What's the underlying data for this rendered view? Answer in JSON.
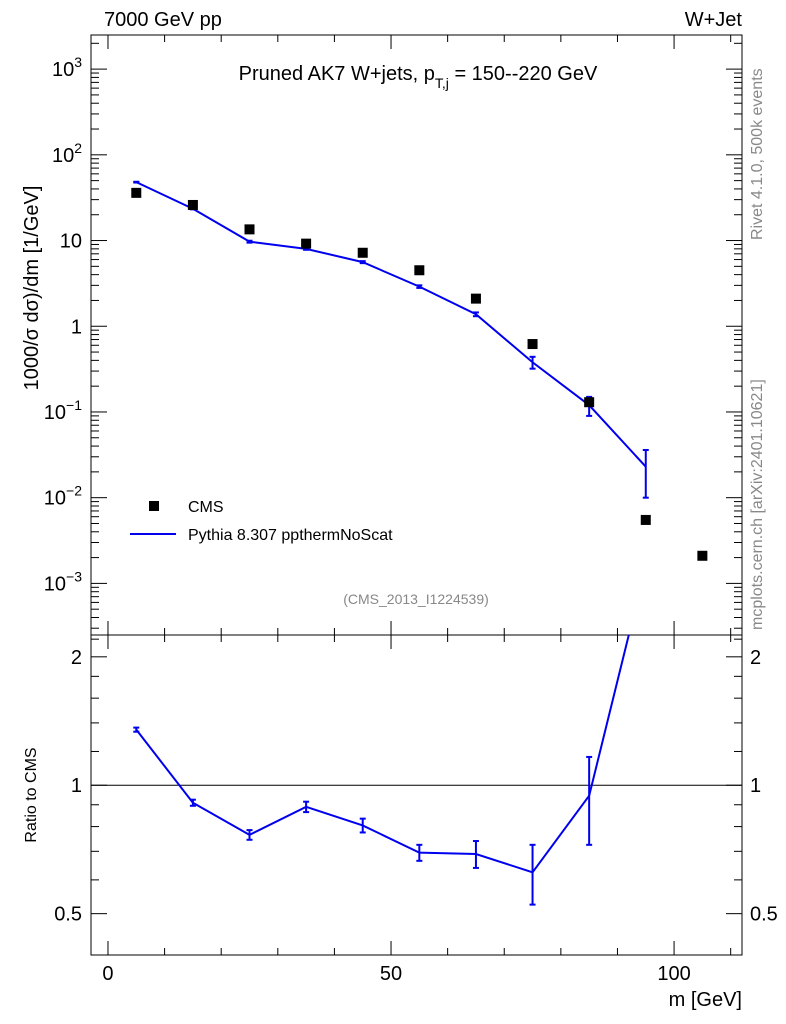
{
  "header": {
    "energy": "7000 GeV pp",
    "process": "W+Jet"
  },
  "side": {
    "rivet": "Rivet 4.1.0,  500k events",
    "mcplots": "mcplots.cern.ch [arXiv:2401.10621]"
  },
  "colors": {
    "mc": "#0000ee",
    "data": "#000000",
    "side_text": "#888888"
  },
  "chart_data": {
    "type": "line",
    "title_prefix": "Pruned AK7 W+jets, p",
    "title_sub": "T,j",
    "title_suffix": " = 150--220 GeV",
    "analysis": "(CMS_2013_I1224539)",
    "xlabel": "m [GeV]",
    "ylabel": "1000/σ  dσ)/dm [1/GeV]",
    "ratio_ylabel": "Ratio to CMS",
    "xlim": [
      -3,
      112
    ],
    "ylim": [
      0.00025,
      2500
    ],
    "ylog": true,
    "ratio_ylim": [
      0.4,
      2.25
    ],
    "ratio_ylog": true,
    "x_ticks": [
      {
        "v": 0,
        "label": "0"
      },
      {
        "v": 50,
        "label": "50"
      },
      {
        "v": 100,
        "label": "100"
      }
    ],
    "y_ticks": [
      {
        "v": 0.001,
        "base": "10",
        "exp": "−3",
        "label": ""
      },
      {
        "v": 0.01,
        "base": "10",
        "exp": "−2",
        "label": ""
      },
      {
        "v": 0.1,
        "base": "10",
        "exp": "−1",
        "label": ""
      },
      {
        "v": 1,
        "base": "",
        "exp": "",
        "label": "1"
      },
      {
        "v": 10,
        "base": "",
        "exp": "",
        "label": "10"
      },
      {
        "v": 100,
        "base": "10",
        "exp": "2",
        "label": ""
      },
      {
        "v": 1000,
        "base": "10",
        "exp": "3",
        "label": ""
      }
    ],
    "ratio_ticks": [
      {
        "v": 0.5,
        "label": "0.5"
      },
      {
        "v": 1,
        "label": "1"
      },
      {
        "v": 2,
        "label": "2"
      }
    ],
    "legend": {
      "data": "CMS",
      "mc": "Pythia 8.307 ppthermNoScat",
      "position": "bottom-left"
    },
    "series": [
      {
        "name": "CMS",
        "x": [
          5,
          15,
          25,
          35,
          45,
          55,
          65,
          75,
          85,
          95,
          105
        ],
        "y": [
          36,
          26,
          13.5,
          9.2,
          7.2,
          4.5,
          2.1,
          0.62,
          0.13,
          0.0055,
          0.0021
        ]
      },
      {
        "name": "Pythia 8.307 ppthermNoScat",
        "x": [
          5,
          15,
          25,
          35,
          45,
          55,
          65,
          75,
          85,
          95
        ],
        "y": [
          48,
          23.5,
          9.7,
          8.0,
          5.6,
          2.9,
          1.38,
          0.38,
          0.12,
          0.023
        ],
        "err": [
          0.5,
          0.4,
          0.25,
          0.2,
          0.15,
          0.1,
          0.07,
          0.06,
          0.03,
          0.013
        ]
      }
    ],
    "ratio": {
      "x": [
        5,
        15,
        25,
        35,
        45,
        55,
        65,
        75,
        85,
        92
      ],
      "y": [
        1.35,
        0.91,
        0.765,
        0.89,
        0.805,
        0.695,
        0.69,
        0.625,
        0.945,
        2.25
      ],
      "err": [
        0.015,
        0.015,
        0.02,
        0.025,
        0.03,
        0.03,
        0.05,
        0.1,
        0.22,
        0
      ]
    }
  }
}
